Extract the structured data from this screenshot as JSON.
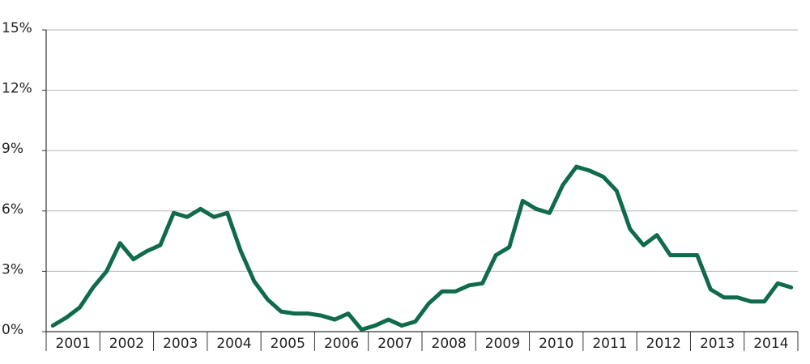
{
  "chart_data": {
    "type": "line",
    "categories": [
      "2001",
      null,
      null,
      null,
      "2002",
      null,
      null,
      null,
      "2003",
      null,
      null,
      null,
      "2004",
      null,
      null,
      null,
      "2005",
      null,
      null,
      null,
      "2006",
      null,
      null,
      null,
      "2007",
      null,
      null,
      null,
      "2008",
      null,
      null,
      null,
      "2009",
      null,
      null,
      null,
      "2010",
      null,
      null,
      null,
      "2011",
      null,
      null,
      null,
      "2012",
      null,
      null,
      null,
      "2013",
      null,
      null,
      null,
      "2014",
      null,
      null,
      null
    ],
    "values": [
      0.3,
      0.7,
      1.2,
      2.2,
      3.0,
      4.4,
      3.6,
      4.0,
      4.3,
      5.9,
      5.7,
      6.1,
      5.7,
      5.9,
      4.0,
      2.5,
      1.6,
      1.0,
      0.9,
      0.9,
      0.8,
      0.6,
      0.9,
      0.1,
      0.3,
      0.6,
      0.3,
      0.5,
      1.4,
      2.0,
      2.0,
      2.3,
      2.4,
      3.8,
      4.2,
      6.5,
      6.1,
      5.9,
      7.3,
      8.2,
      8.0,
      7.7,
      7.0,
      5.1,
      4.3,
      4.8,
      3.8,
      3.8,
      3.8,
      2.1,
      1.7,
      1.7,
      1.5,
      1.5,
      2.4,
      2.2
    ],
    "color": "#0f6b4a",
    "ylim": [
      0,
      15
    ],
    "yticks": [
      {
        "value": 0,
        "label": "0%"
      },
      {
        "value": 3,
        "label": "3%"
      },
      {
        "value": 6,
        "label": "6%"
      },
      {
        "value": 9,
        "label": "9%"
      },
      {
        "value": 12,
        "label": "12%"
      },
      {
        "value": 15,
        "label": "15%"
      }
    ],
    "grid": true
  }
}
